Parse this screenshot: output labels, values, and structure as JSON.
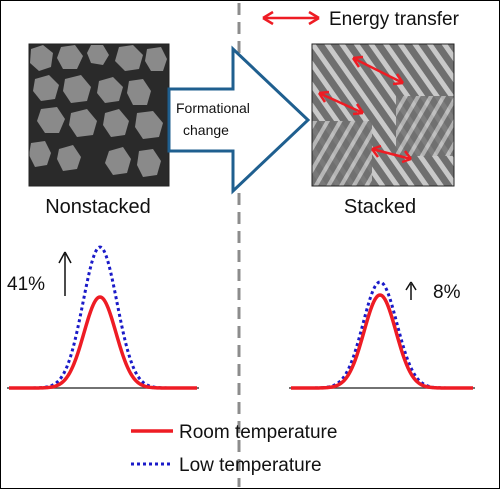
{
  "legend_energy": "Energy transfer",
  "arrow_label_line1": "Formational",
  "arrow_label_line2": "change",
  "panel_left_label": "Nonstacked",
  "panel_right_label": "Stacked",
  "left_increase": "41%",
  "right_increase": "8%",
  "legend_room": "Room temperature",
  "legend_low": "Low temperature",
  "colors": {
    "room": "#ee1c24",
    "low": "#1a1ac8",
    "arrow_stroke": "#1f5f8f",
    "divider": "#8c8c8c"
  }
}
